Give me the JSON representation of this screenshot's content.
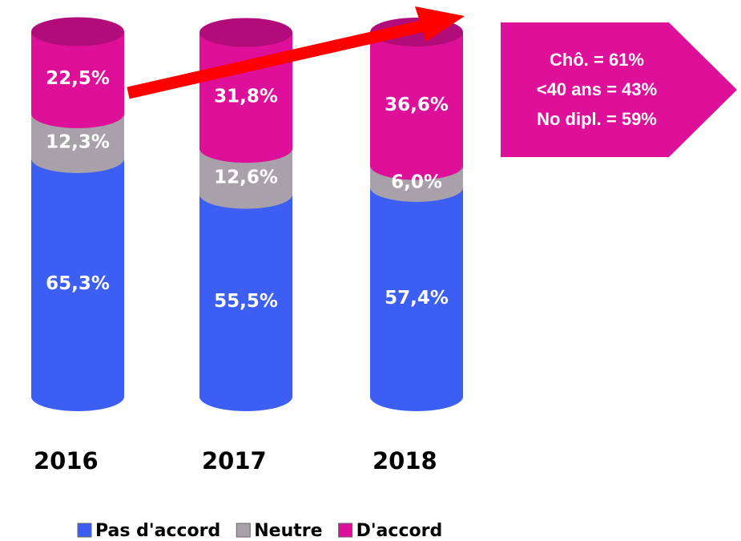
{
  "chart_data": {
    "type": "stacked_cylinder",
    "categories": [
      "2016",
      "2017",
      "2018"
    ],
    "series": [
      {
        "name": "Pas d'accord",
        "color": "#3d5ef2",
        "values": [
          65.3,
          55.5,
          57.4
        ],
        "value_labels": [
          "65,3%",
          "55,5%",
          "57,4%"
        ]
      },
      {
        "name": "Neutre",
        "color": "#a9a1aa",
        "values": [
          12.3,
          12.6,
          6.0
        ],
        "value_labels": [
          "12,3%",
          "12,6%",
          "6,0%"
        ]
      },
      {
        "name": "D'accord",
        "color": "#de0f98",
        "values": [
          22.5,
          31.8,
          36.6
        ],
        "value_labels": [
          "22,5%",
          "31,8%",
          "36,6%"
        ]
      }
    ],
    "annotation": [
      "Chô. = 61%",
      "<40 ans = 43%",
      "No dipl. = 59%"
    ],
    "legend": "bottom"
  }
}
